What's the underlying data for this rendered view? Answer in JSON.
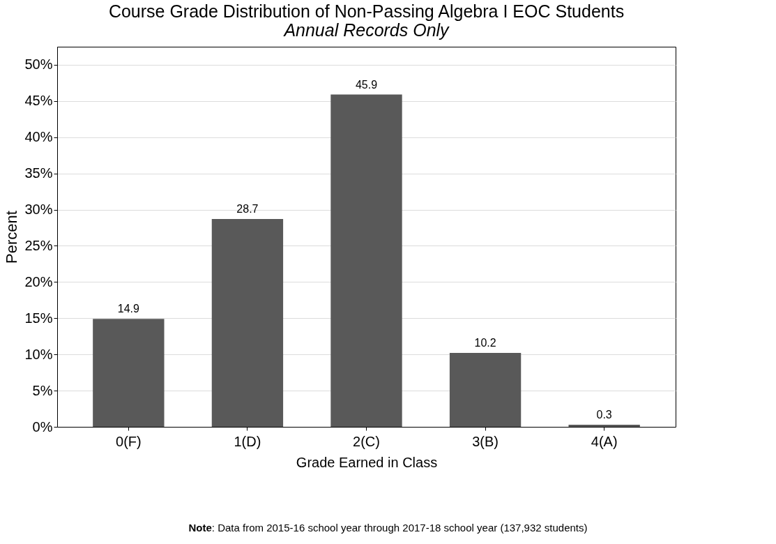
{
  "chart_data": {
    "type": "bar",
    "title": "Course Grade Distribution of Non-Passing Algebra I EOC Students",
    "subtitle": "Annual Records Only",
    "xlabel": "Grade Earned in Class",
    "ylabel": "Percent",
    "categories": [
      "0(F)",
      "1(D)",
      "2(C)",
      "3(B)",
      "4(A)"
    ],
    "values": [
      14.9,
      28.7,
      45.9,
      10.2,
      0.3
    ],
    "color": "#595959",
    "data_labels": true,
    "ylim": [
      0,
      52.5
    ],
    "yticks": [
      {
        "value": 0,
        "label": "0%"
      },
      {
        "value": 5,
        "label": "5%"
      },
      {
        "value": 10,
        "label": "10%"
      },
      {
        "value": 15,
        "label": "15%"
      },
      {
        "value": 20,
        "label": "20%"
      },
      {
        "value": 25,
        "label": "25%"
      },
      {
        "value": 30,
        "label": "30%"
      },
      {
        "value": 35,
        "label": "35%"
      },
      {
        "value": 40,
        "label": "40%"
      },
      {
        "value": 45,
        "label": "45%"
      },
      {
        "value": 50,
        "label": "50%"
      }
    ],
    "grid": "y",
    "annotations": [
      "Note: Data from 2015-16 school year through 2017-18 school year (137,932 students)"
    ]
  }
}
